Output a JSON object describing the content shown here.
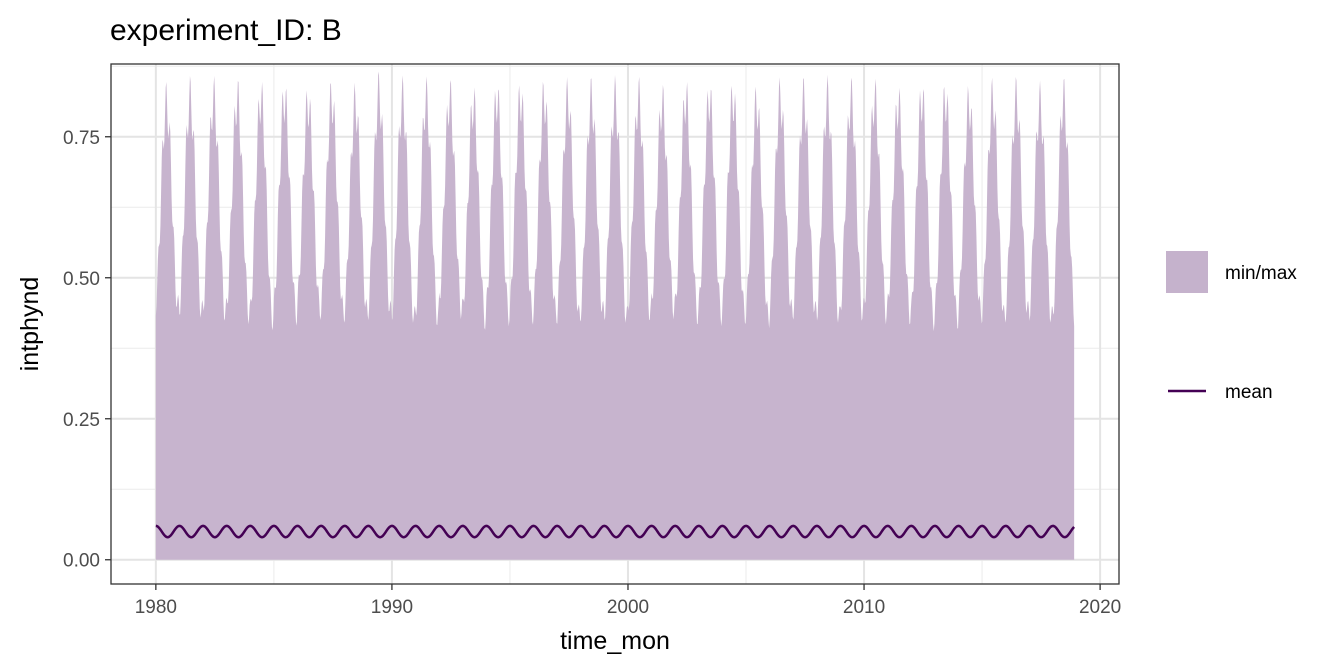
{
  "chart_data": {
    "type": "area",
    "title": "experiment_ID: B",
    "xlabel": "time_mon",
    "ylabel": "intphynd",
    "xlim": [
      1978.1,
      2020.8
    ],
    "ylim": [
      -0.043,
      0.879
    ],
    "x_ticks": [
      1980,
      1990,
      2000,
      2010,
      2020
    ],
    "x_tick_labels": [
      "1980",
      "1990",
      "2000",
      "2010",
      "2020"
    ],
    "y_ticks": [
      0,
      0.25,
      0.5,
      0.75
    ],
    "y_tick_labels": [
      "0.00",
      "0.25",
      "0.50",
      "0.75"
    ],
    "grid": true,
    "legend_position": "right",
    "series": [
      {
        "name": "min/max",
        "kind": "ribbon",
        "color": "#c5b2cc",
        "x_start": 1980.0,
        "x_end": 2018.9,
        "min_value": 0.0,
        "annual_peak_max": [
          0.85,
          0.86,
          0.86,
          0.86,
          0.86,
          0.86,
          0.85,
          0.86,
          0.85,
          0.87,
          0.86,
          0.86,
          0.86,
          0.85,
          0.86,
          0.86,
          0.86,
          0.86,
          0.86,
          0.86,
          0.86,
          0.85,
          0.86,
          0.86,
          0.86,
          0.85,
          0.86,
          0.86,
          0.86,
          0.86,
          0.86,
          0.85,
          0.86,
          0.86,
          0.85,
          0.86,
          0.86,
          0.85,
          0.86
        ],
        "annual_trough_max": [
          0.47,
          0.46,
          0.46,
          0.46,
          0.45,
          0.46,
          0.47,
          0.46,
          0.46,
          0.46,
          0.45,
          0.45,
          0.47,
          0.45,
          0.46,
          0.46,
          0.46,
          0.45,
          0.46,
          0.45,
          0.46,
          0.47,
          0.46,
          0.46,
          0.46,
          0.45,
          0.46,
          0.46,
          0.45,
          0.46,
          0.46,
          0.46,
          0.45,
          0.45,
          0.46,
          0.45,
          0.46,
          0.45,
          0.45
        ]
      },
      {
        "name": "mean",
        "kind": "line",
        "color": "#440154",
        "x_start": 1980.0,
        "x_end": 2018.9,
        "seasonal_max": 0.06,
        "seasonal_min": 0.04
      }
    ]
  },
  "legend": [
    {
      "label": "min/max",
      "key": "fill",
      "color": "#c5b2cc"
    },
    {
      "label": "mean",
      "key": "line",
      "color": "#440154"
    }
  ]
}
